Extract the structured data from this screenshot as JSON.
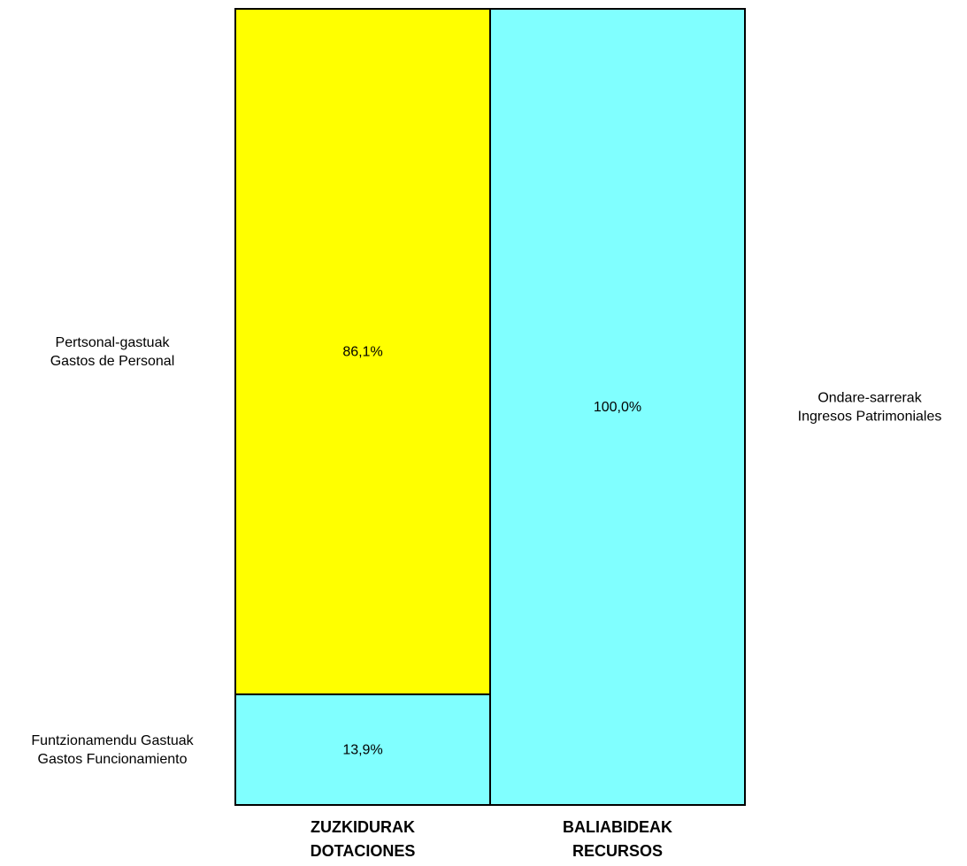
{
  "chart_data": {
    "type": "bar",
    "stacked": true,
    "normalized": true,
    "value_format": "percent",
    "ylim": [
      0,
      100
    ],
    "grid": false,
    "legend": "none",
    "categories": [
      {
        "line1": "ZUZKIDURAK",
        "line2": "DOTACIONES"
      },
      {
        "line1": "BALIABIDEAK",
        "line2": "RECURSOS"
      }
    ],
    "series": [
      {
        "category_index": 0,
        "segments": [
          {
            "value_label": "13,9%",
            "value": 13.9,
            "color": "#80ffff",
            "label_side": "left",
            "label_line1": "Funtzionamendu Gastuak",
            "label_line2": "Gastos Funcionamiento"
          },
          {
            "value_label": "86,1%",
            "value": 86.1,
            "color": "#ffff00",
            "label_side": "left",
            "label_line1": "Pertsonal-gastuak",
            "label_line2": "Gastos de Personal"
          }
        ]
      },
      {
        "category_index": 1,
        "segments": [
          {
            "value_label": "100,0%",
            "value": 100.0,
            "color": "#80ffff",
            "label_side": "right",
            "label_line1": "Ondare-sarrerak",
            "label_line2": "Ingresos Patrimoniales"
          }
        ]
      }
    ]
  }
}
